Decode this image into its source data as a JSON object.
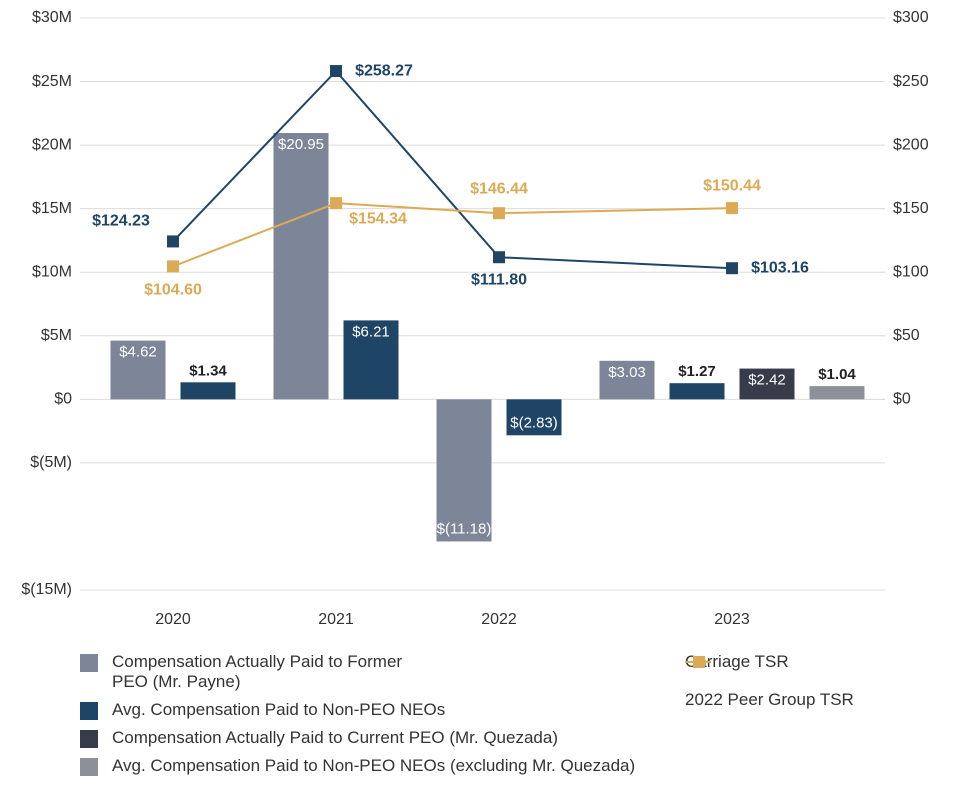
{
  "chart_data": {
    "type": "bar",
    "categories": [
      "2020",
      "2021",
      "2022",
      "2023"
    ],
    "ylim": [
      -15,
      30
    ],
    "yticks": [
      {
        "value": -15,
        "label": "$(15M)"
      },
      {
        "value": -5,
        "label": "$(5M)"
      },
      {
        "value": 0,
        "label": "$0"
      },
      {
        "value": 5,
        "label": "$5M"
      },
      {
        "value": 10,
        "label": "$10M"
      },
      {
        "value": 15,
        "label": "$15M"
      },
      {
        "value": 20,
        "label": "$20M"
      },
      {
        "value": 25,
        "label": "$25M"
      },
      {
        "value": 30,
        "label": "$30M"
      }
    ],
    "y2lim": [
      -150,
      300
    ],
    "y2ticks": [
      {
        "value": 0,
        "label": "$0"
      },
      {
        "value": 50,
        "label": "$50"
      },
      {
        "value": 100,
        "label": "$100"
      },
      {
        "value": 150,
        "label": "$150"
      },
      {
        "value": 200,
        "label": "$200"
      },
      {
        "value": 250,
        "label": "$250"
      },
      {
        "value": 300,
        "label": "$300"
      }
    ],
    "grid": true,
    "series": [
      {
        "name": "Compensation Actually Paid to Former PEO (Mr. Payne)",
        "type": "bar",
        "color": "#7d8599",
        "values": [
          4.62,
          20.95,
          -11.18,
          3.03
        ],
        "value_labels": [
          "$4.62",
          "$20.95",
          "$(11.18)",
          "$3.03"
        ]
      },
      {
        "name": "Avg. Compensation Paid to Non-PEO NEOs",
        "type": "bar",
        "color": "#1f4566",
        "values": [
          1.34,
          6.21,
          -2.83,
          1.27
        ],
        "value_labels": [
          "$1.34",
          "$6.21",
          "$(2.83)",
          "$1.27"
        ]
      },
      {
        "name": "Compensation Actually Paid to Current PEO (Mr. Quezada)",
        "type": "bar",
        "color": "#363c4a",
        "values": [
          null,
          null,
          null,
          2.42
        ],
        "value_labels": [
          null,
          null,
          null,
          "$2.42"
        ]
      },
      {
        "name": "Avg. Compensation Paid to Non-PEO NEOs (excluding Mr. Quezada)",
        "type": "bar",
        "color": "#8b9099",
        "values": [
          null,
          null,
          null,
          1.04
        ],
        "value_labels": [
          null,
          null,
          null,
          "$1.04"
        ]
      },
      {
        "name": "Carriage TSR",
        "type": "line",
        "axis": "y2",
        "color": "#1f4566",
        "values": [
          124.23,
          258.27,
          111.8,
          103.16
        ],
        "value_labels": [
          "$124.23",
          "$258.27",
          "$111.80",
          "$103.16"
        ]
      },
      {
        "name": "2022 Peer Group TSR",
        "type": "line",
        "axis": "y2",
        "color": "#dcaa55",
        "values": [
          104.6,
          154.34,
          146.44,
          150.44
        ],
        "value_labels": [
          "$104.60",
          "$154.34",
          "$146.44",
          "$150.44"
        ]
      }
    ]
  }
}
